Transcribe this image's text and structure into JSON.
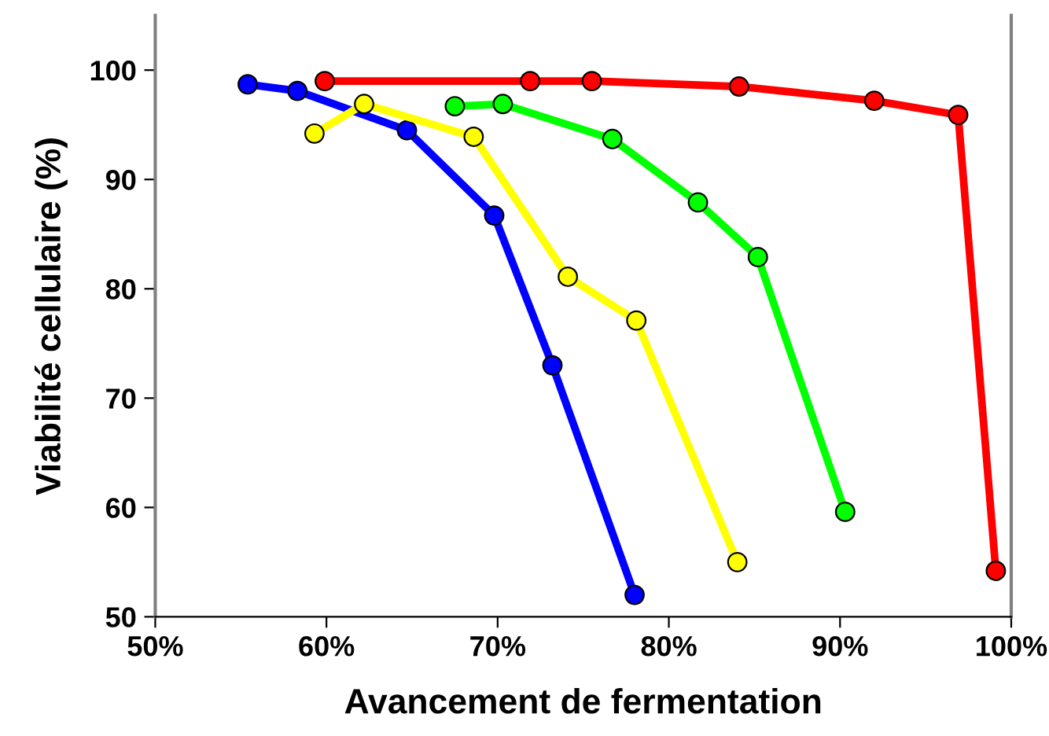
{
  "chart_data": {
    "type": "line",
    "xlabel": "Avancement de fermentation",
    "ylabel": "Viabilité cellulaire (%)",
    "xlim": [
      50,
      100
    ],
    "xticks": [
      {
        "value": 50,
        "label": "50%"
      },
      {
        "value": 60,
        "label": "60%"
      },
      {
        "value": 70,
        "label": "70%"
      },
      {
        "value": 80,
        "label": "80%"
      },
      {
        "value": 90,
        "label": "90%"
      },
      {
        "value": 100,
        "label": "100%"
      }
    ],
    "ylim": [
      50,
      105
    ],
    "yticks": [
      50,
      60,
      70,
      80,
      90,
      100
    ],
    "grid": false,
    "legend": false,
    "marker": "circle",
    "line_style": "solid",
    "series": [
      {
        "color": "#0000ff",
        "x": [
          55.4,
          58.3,
          64.7,
          69.8,
          73.2,
          78.0
        ],
        "values": [
          98.7,
          98.1,
          94.5,
          86.7,
          73.0,
          52.0
        ]
      },
      {
        "color": "#ffff00",
        "x": [
          59.3,
          62.2,
          68.6,
          74.1,
          78.1,
          84.0
        ],
        "values": [
          94.2,
          96.9,
          93.9,
          81.1,
          77.1,
          55.0
        ]
      },
      {
        "color": "#00ff00",
        "x": [
          67.5,
          70.3,
          76.7,
          81.7,
          85.2,
          90.3
        ],
        "values": [
          96.7,
          96.9,
          93.7,
          87.9,
          82.9,
          59.6
        ]
      },
      {
        "color": "#ff0000",
        "x": [
          59.9,
          71.9,
          75.5,
          84.1,
          92.0,
          96.9,
          99.1
        ],
        "values": [
          99.0,
          99.0,
          99.0,
          98.5,
          97.2,
          95.9,
          54.2
        ]
      }
    ]
  }
}
